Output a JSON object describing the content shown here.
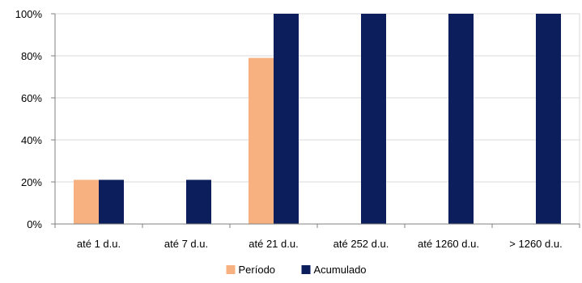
{
  "chart_data": {
    "type": "bar",
    "categories": [
      "até 1 d.u.",
      "até 7 d.u.",
      "até 21 d.u.",
      "até 252 d.u.",
      "até 1260 d.u.",
      "> 1260 d.u."
    ],
    "series": [
      {
        "name": "Período",
        "values": [
          21,
          0,
          79,
          0,
          0,
          0
        ],
        "color": "#F7B07F"
      },
      {
        "name": "Acumulado",
        "values": [
          21,
          21,
          100,
          100,
          100,
          100
        ],
        "color": "#0C1E5B"
      }
    ],
    "title": "",
    "xlabel": "",
    "ylabel": "",
    "ylim": [
      0,
      100
    ],
    "yticks": [
      "0%",
      "20%",
      "40%",
      "60%",
      "80%",
      "100%"
    ],
    "grid": "horizontal",
    "legend": "bottom"
  }
}
